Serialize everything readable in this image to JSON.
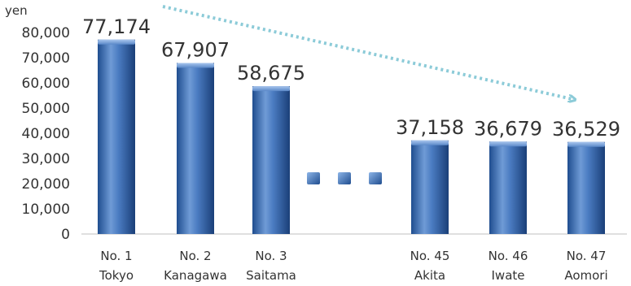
{
  "chart_data": {
    "type": "bar",
    "unit_label": "yen",
    "categories": [
      {
        "rank": "No. 1",
        "name": "Tokyo"
      },
      {
        "rank": "No. 2",
        "name": "Kanagawa"
      },
      {
        "rank": "No. 3",
        "name": "Saitama"
      },
      {
        "rank": "No. 45",
        "name": "Akita"
      },
      {
        "rank": "No. 46",
        "name": "Iwate"
      },
      {
        "rank": "No. 47",
        "name": "Aomori"
      }
    ],
    "values": [
      77174,
      67907,
      58675,
      37158,
      36679,
      36529
    ],
    "value_labels": [
      "77,174",
      "67,907",
      "58,675",
      "37,158",
      "36,679",
      "36,529"
    ],
    "y_ticks": [
      "0",
      "10,000",
      "20,000",
      "30,000",
      "40,000",
      "50,000",
      "60,000",
      "70,000",
      "80,000"
    ],
    "ylim": [
      0,
      80000
    ],
    "grid": false,
    "legend": "none",
    "gap_marker": "ellipsis (three squares) between No. 3 and No. 45",
    "trend_arrow": "dotted downward arrow from No. 1 to No. 47",
    "colors": {
      "bar_light": "#7ea6da",
      "bar_mid": "#3f6fb5",
      "bar_dark": "#1f4d8f",
      "arrow": "#8ccbd8",
      "axis": "#bfbfbf",
      "text": "#333333"
    }
  }
}
